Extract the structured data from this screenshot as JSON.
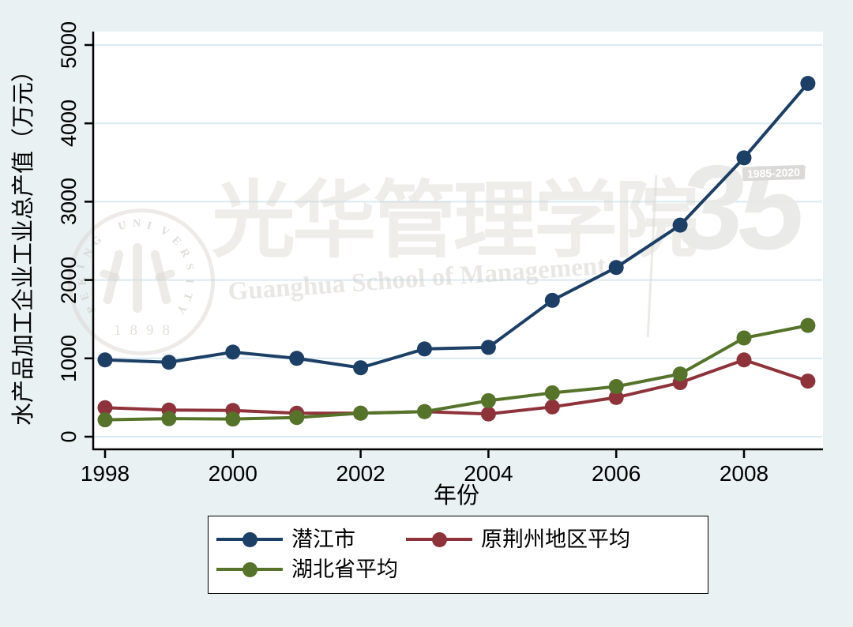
{
  "figure": {
    "background_color": "#e9f1f2",
    "plot_background_color": "#ffffff",
    "gridline_color": "#d9eaf2",
    "axis_color": "#000000"
  },
  "chart_data": {
    "type": "line",
    "title": "",
    "xlabel": "年份",
    "ylabel": "水产品加工企业工业总产值（万元）",
    "x": [
      1998,
      1999,
      2000,
      2001,
      2002,
      2003,
      2004,
      2005,
      2006,
      2007,
      2008,
      2009
    ],
    "xticks": [
      1998,
      2000,
      2002,
      2004,
      2006,
      2008
    ],
    "yticks": [
      0,
      1000,
      2000,
      3000,
      4000,
      5000
    ],
    "ylim": [
      0,
      5000
    ],
    "grid": true,
    "legend_position": "bottom",
    "series": [
      {
        "name": "潜江市",
        "color": "#1c3f66",
        "marker": "circle",
        "values": [
          980,
          950,
          1080,
          1000,
          880,
          1120,
          1140,
          1740,
          2160,
          2700,
          3560,
          4510
        ]
      },
      {
        "name": "原荆州地区平均",
        "color": "#8f333b",
        "marker": "circle",
        "values": [
          370,
          340,
          335,
          300,
          300,
          320,
          290,
          380,
          500,
          690,
          980,
          710
        ]
      },
      {
        "name": "湖北省平均",
        "color": "#557329",
        "marker": "circle",
        "values": [
          215,
          230,
          225,
          245,
          300,
          320,
          460,
          560,
          640,
          800,
          1260,
          1420
        ]
      }
    ]
  },
  "watermark": {
    "seal_arc_text": "PEKING UNIVERSITY",
    "seal_year": "1898",
    "calligraphy": "光华管理学院",
    "school_en": "Guanghua School of Management",
    "anniversary_number": "35",
    "anniversary_years": "1985-2020"
  }
}
